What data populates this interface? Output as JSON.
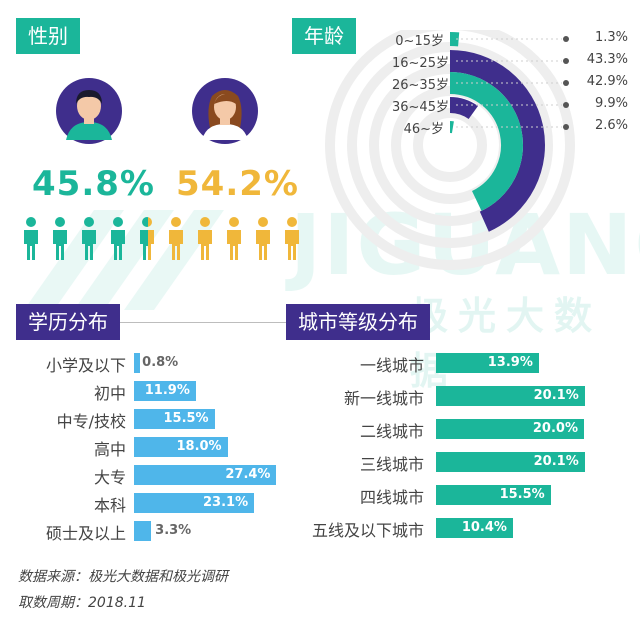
{
  "watermark": {
    "brand": "JIGUANG",
    "brand_cn": "极光大数据"
  },
  "gender": {
    "title": "性别",
    "male_pct": "45.8%",
    "female_pct": "54.2%",
    "male_color": "#1bb69a",
    "female_color": "#f0b73a"
  },
  "age": {
    "title": "年龄",
    "colors": [
      "#1bb69a",
      "#3f2e8c"
    ],
    "items": [
      {
        "label": "0~15岁",
        "value": "1.3%",
        "percent": 1.3
      },
      {
        "label": "16~25岁",
        "value": "43.3%",
        "percent": 43.3
      },
      {
        "label": "26~35岁",
        "value": "42.9%",
        "percent": 42.9
      },
      {
        "label": "36~45岁",
        "value": "9.9%",
        "percent": 9.9
      },
      {
        "label": "46~岁",
        "value": "2.6%",
        "percent": 2.6
      }
    ]
  },
  "education": {
    "title": "学历分布",
    "items": [
      {
        "label": "小学及以下",
        "value": "0.8%",
        "percent": 0.8
      },
      {
        "label": "初中",
        "value": "11.9%",
        "percent": 11.9
      },
      {
        "label": "中专/技校",
        "value": "15.5%",
        "percent": 15.5
      },
      {
        "label": "高中",
        "value": "18.0%",
        "percent": 18.0
      },
      {
        "label": "大专",
        "value": "27.4%",
        "percent": 27.4
      },
      {
        "label": "本科",
        "value": "23.1%",
        "percent": 23.1
      },
      {
        "label": "硕士及以上",
        "value": "3.3%",
        "percent": 3.3
      }
    ]
  },
  "city": {
    "title": "城市等级分布",
    "items": [
      {
        "label": "一线城市",
        "value": "13.9%",
        "percent": 13.9
      },
      {
        "label": "新一线城市",
        "value": "20.1%",
        "percent": 20.1
      },
      {
        "label": "二线城市",
        "value": "20.0%",
        "percent": 20.0
      },
      {
        "label": "三线城市",
        "value": "20.1%",
        "percent": 20.1
      },
      {
        "label": "四线城市",
        "value": "15.5%",
        "percent": 15.5
      },
      {
        "label": "五线及以下城市",
        "value": "10.4%",
        "percent": 10.4
      }
    ]
  },
  "footer": {
    "source": "数据来源：极光大数据和极光调研",
    "period": "取数周期：2018.11"
  },
  "chart_data": [
    {
      "type": "pie",
      "title": "性别",
      "categories": [
        "",
        ""
      ],
      "values": [
        45.8,
        54.2
      ]
    },
    {
      "type": "bar",
      "title": "年龄",
      "categories": [
        "0~15岁",
        "16~25岁",
        "26~35岁",
        "36~45岁",
        "46~岁"
      ],
      "values": [
        1.3,
        43.3,
        42.9,
        9.9,
        2.6
      ]
    },
    {
      "type": "bar",
      "title": "学历分布",
      "categories": [
        "小学及以下",
        "初中",
        "中专/技校",
        "高中",
        "大专",
        "本科",
        "硕士及以上"
      ],
      "values": [
        0.8,
        11.9,
        15.5,
        18.0,
        27.4,
        23.1,
        3.3
      ]
    },
    {
      "type": "bar",
      "title": "城市等级分布",
      "categories": [
        "一线城市",
        "新一线城市",
        "二线城市",
        "三线城市",
        "四线城市",
        "五线及以下城市"
      ],
      "values": [
        13.9,
        20.1,
        20.0,
        20.1,
        15.5,
        10.4
      ]
    }
  ]
}
